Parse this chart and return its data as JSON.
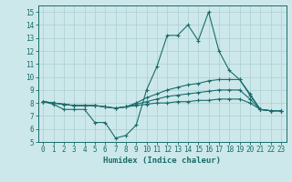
{
  "xlabel": "Humidex (Indice chaleur)",
  "ylabel": "",
  "xlim": [
    -0.5,
    23.5
  ],
  "ylim": [
    5,
    15.5
  ],
  "yticks": [
    5,
    6,
    7,
    8,
    9,
    10,
    11,
    12,
    13,
    14,
    15
  ],
  "xticks": [
    0,
    1,
    2,
    3,
    4,
    5,
    6,
    7,
    8,
    9,
    10,
    11,
    12,
    13,
    14,
    15,
    16,
    17,
    18,
    19,
    20,
    21,
    22,
    23
  ],
  "background_color": "#cde8ea",
  "line_color": "#1a6b6b",
  "grid_color": "#aacfd2",
  "series": [
    [
      8.1,
      7.9,
      7.5,
      7.5,
      7.5,
      6.5,
      6.5,
      5.3,
      5.5,
      6.3,
      9.0,
      10.8,
      13.2,
      13.2,
      14.0,
      12.8,
      15.0,
      12.0,
      10.5,
      9.8,
      8.7,
      7.5,
      7.4,
      7.4
    ],
    [
      8.1,
      8.0,
      7.9,
      7.8,
      7.8,
      7.8,
      7.7,
      7.6,
      7.7,
      7.8,
      7.9,
      8.0,
      8.0,
      8.1,
      8.1,
      8.2,
      8.2,
      8.3,
      8.3,
      8.3,
      8.0,
      7.5,
      7.4,
      7.4
    ],
    [
      8.1,
      8.0,
      7.9,
      7.8,
      7.8,
      7.8,
      7.7,
      7.6,
      7.7,
      7.9,
      8.1,
      8.3,
      8.5,
      8.6,
      8.7,
      8.8,
      8.9,
      9.0,
      9.0,
      9.0,
      8.3,
      7.5,
      7.4,
      7.4
    ],
    [
      8.1,
      8.0,
      7.9,
      7.8,
      7.8,
      7.8,
      7.7,
      7.6,
      7.7,
      8.0,
      8.4,
      8.7,
      9.0,
      9.2,
      9.4,
      9.5,
      9.7,
      9.8,
      9.8,
      9.8,
      8.6,
      7.5,
      7.4,
      7.4
    ]
  ],
  "x": [
    0,
    1,
    2,
    3,
    4,
    5,
    6,
    7,
    8,
    9,
    10,
    11,
    12,
    13,
    14,
    15,
    16,
    17,
    18,
    19,
    20,
    21,
    22,
    23
  ]
}
